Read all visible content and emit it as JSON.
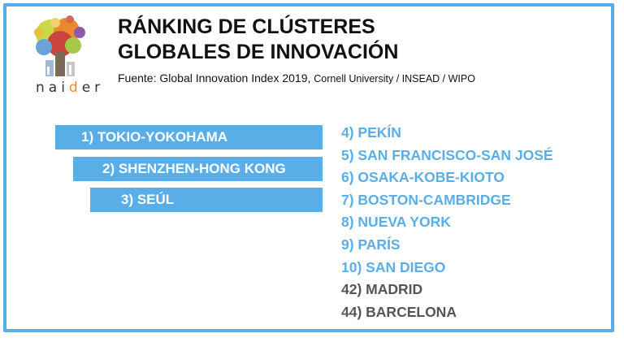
{
  "logo": {
    "text_pre": "nai",
    "text_hl": "d",
    "text_post": "er"
  },
  "title": {
    "line1": "RÁNKING DE CLÚSTERES",
    "line2": "GLOBALES DE INNOVACIÓN"
  },
  "source": {
    "main": "Fuente: Global Innovation Index 2019, ",
    "small": "Cornell University / INSEAD / WIPO"
  },
  "top3": [
    "1) TOKIO-YOKOHAMA",
    "2) SHENZHEN-HONG KONG",
    "3) SEÚL"
  ],
  "ranks": [
    {
      "label": "4) PEKÍN",
      "color": "blue"
    },
    {
      "label": "5) SAN FRANCISCO-SAN JOSÉ",
      "color": "blue"
    },
    {
      "label": "6) OSAKA-KOBE-KIOTO",
      "color": "blue"
    },
    {
      "label": "7) BOSTON-CAMBRIDGE",
      "color": "blue"
    },
    {
      "label": "8) NUEVA YORK",
      "color": "blue"
    },
    {
      "label": "9) PARÍS",
      "color": "blue"
    },
    {
      "label": "10) SAN DIEGO",
      "color": "blue"
    },
    {
      "label": "42) MADRID",
      "color": "gray"
    },
    {
      "label": "44) BARCELONA",
      "color": "gray"
    }
  ],
  "colors": {
    "accent": "#5aaee8",
    "muted": "#555555",
    "logo_highlight": "#e98a2f"
  }
}
